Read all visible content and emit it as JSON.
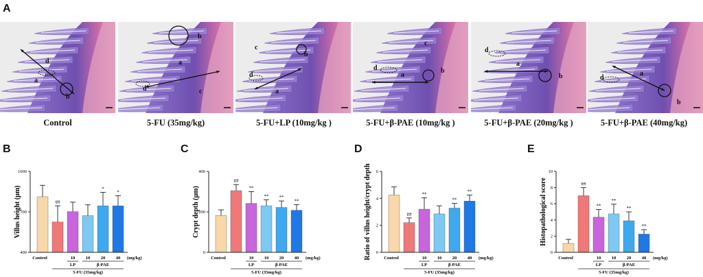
{
  "panel_letters": [
    "A",
    "B",
    "C",
    "D",
    "E"
  ],
  "micrographs": {
    "captions": [
      "Control",
      "5-FU (35mg/kg)",
      "5-FU+LP (10mg/kg )",
      "5-FU+β-PAE (10mg/kg )",
      "5-FU+β-PAE (20mg/kg )",
      "5-FU+β-PAE (40mg/kg)"
    ],
    "annotations": [
      [
        "a",
        "b",
        "d"
      ],
      [
        "a",
        "b",
        "c",
        "d"
      ],
      [
        "a",
        "b",
        "c",
        "d"
      ],
      [
        "a",
        "b",
        "c",
        "d"
      ],
      [
        "a",
        "b",
        "d"
      ],
      [
        "a",
        "b",
        "d"
      ]
    ]
  },
  "group_axis": {
    "control_label": "Control",
    "dose_labels": [
      "10",
      "10",
      "20",
      "40"
    ],
    "lp_label": "LP",
    "pae_label": "β-PAE",
    "unit_label": "(mg/kg)",
    "fu_label": "5-FU (35mg/kg)"
  },
  "colors": {
    "bars": [
      "#f8d8a8",
      "#f07878",
      "#c864dc",
      "#7ec8f4",
      "#3ea8f0",
      "#1e78e6"
    ],
    "error": "#222222",
    "axis": "#222222"
  },
  "chart_data": [
    {
      "panel": "B",
      "type": "bar",
      "ylabel": "Villus height (μm)",
      "ylim": [
        400,
        1000
      ],
      "yticks": [
        "400",
        "700",
        "1000"
      ],
      "ytick_values": [
        400,
        700,
        1000
      ],
      "values": [
        812,
        625,
        702,
        672,
        745,
        745
      ],
      "errors": [
        85,
        120,
        70,
        80,
        100,
        75
      ],
      "signif": [
        "",
        "##",
        "",
        "",
        "*",
        "*"
      ]
    },
    {
      "panel": "C",
      "type": "bar",
      "ylabel": "Crypt depth (μm)",
      "ylim": [
        0,
        400
      ],
      "yticks": [
        "0",
        "200",
        "400"
      ],
      "ytick_values": [
        0,
        200,
        400
      ],
      "values": [
        182,
        305,
        242,
        230,
        222,
        208
      ],
      "errors": [
        28,
        30,
        58,
        30,
        32,
        28
      ],
      "signif": [
        "",
        "##",
        "**",
        "**",
        "**",
        "**"
      ]
    },
    {
      "panel": "D",
      "type": "bar",
      "ylabel": "Ratio of villus height/crypt depth",
      "ylim": [
        0,
        6
      ],
      "yticks": [
        "0",
        "2",
        "4",
        "6"
      ],
      "ytick_values": [
        0,
        2,
        4,
        6
      ],
      "values": [
        4.25,
        2.2,
        3.2,
        2.85,
        3.28,
        3.8
      ],
      "errors": [
        0.6,
        0.35,
        0.85,
        0.6,
        0.35,
        0.45
      ],
      "signif": [
        "",
        "##",
        "**",
        "",
        "**",
        "**"
      ]
    },
    {
      "panel": "E",
      "type": "bar",
      "ylabel": "Histopathological score",
      "ylim": [
        0,
        10
      ],
      "yticks": [
        "0",
        "2",
        "4",
        "6",
        "8",
        "10"
      ],
      "ytick_values": [
        0,
        2,
        4,
        6,
        8,
        10
      ],
      "values": [
        1.1,
        7.0,
        4.35,
        4.75,
        3.9,
        2.25
      ],
      "errors": [
        0.5,
        1.0,
        0.95,
        1.2,
        1.1,
        0.55
      ],
      "signif": [
        "",
        "##",
        "**",
        "**",
        "**",
        "**"
      ]
    }
  ]
}
